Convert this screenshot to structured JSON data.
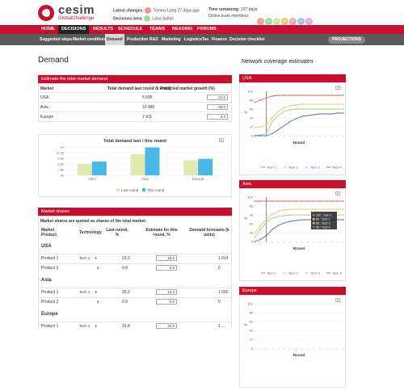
{
  "brand": {
    "name": "cesim",
    "sub": "GlobalChallenge"
  },
  "header": {
    "latest_label": "Latest changes:",
    "latest_value": "Tommy Long 27 days ago",
    "decision_label": "Decisions area:",
    "decision_value": "Lana Sultan",
    "time_label": "Time remaining:",
    "time_value": "107 days",
    "online_label": "Online team members:",
    "members": [
      {
        "i": "TL",
        "c": "#e8a08e"
      },
      {
        "i": "KG",
        "c": "#9fd8a0"
      },
      {
        "i": "AD",
        "c": "#c5e69a"
      },
      {
        "i": "MM",
        "c": "#f2c07c"
      },
      {
        "i": "SP",
        "c": "#f09fb0"
      },
      {
        "i": "JS",
        "c": "#9fc2ea"
      },
      {
        "i": "VN",
        "c": "#d8a8e8"
      }
    ]
  },
  "nav": {
    "items": [
      "HOME",
      "DECISIONS",
      "RESULTS",
      "SCHEDULE",
      "TEAMS",
      "READING",
      "FORUMS"
    ],
    "active": "DECISIONS"
  },
  "subnav": {
    "items": [
      "Suggested steps",
      "Market conditions",
      "Demand",
      "Production",
      "R&D",
      "Marketing",
      "Logistics",
      "Tax",
      "Finance",
      "Decision checklist"
    ],
    "active": "Demand",
    "projections": "PROJECTIONS"
  },
  "page": {
    "title": "Demand"
  },
  "estimate": {
    "title": "Estimate the total market demand",
    "headers": [
      "Market",
      "Total demand last round (k units)",
      "Predicted market growth (%)"
    ],
    "rows": [
      {
        "market": "USA",
        "demand": "5 595",
        "growth": "21.0"
      },
      {
        "market": "Asia",
        "demand": "10 480",
        "growth": "32.0"
      },
      {
        "market": "Europe",
        "demand": "7 411",
        "growth": "9.0"
      }
    ]
  },
  "demand_chart": {
    "title": "Total demand last / this round",
    "categories": [
      "USA",
      "Asia",
      "Europe"
    ],
    "last_round": [
      5.6,
      10.5,
      7.4
    ],
    "this_round": [
      6.8,
      13.8,
      8.1
    ],
    "ticks": [
      "14",
      "11.2k",
      "8.4k",
      "5.6k",
      "2.8k",
      "0k"
    ],
    "legend": [
      "Last round",
      "This round"
    ]
  },
  "market_shares": {
    "title": "Market shares",
    "desc": "Market shares are quoted as shares of the total market.",
    "headers": [
      "Market_ Product_",
      "Technology",
      "Last round, %",
      "Estimate for this round, %",
      "Demand forecasts (k units)"
    ],
    "groups": [
      {
        "name": "USA",
        "rows": [
          {
            "p": "Product 1",
            "t": "Tech 1",
            "l": "23.3",
            "e": "15.0",
            "f": "1 014"
          },
          {
            "p": "Product 2",
            "t": "",
            "l": "0.0",
            "e": "0.0",
            "f": "0"
          }
        ]
      },
      {
        "name": "Asia",
        "rows": [
          {
            "p": "Product 1",
            "t": "Tech 1",
            "l": "26.2",
            "e": "12.0",
            "f": "1 660"
          },
          {
            "p": "Product 2",
            "t": "",
            "l": "0.0",
            "e": "0.0",
            "f": "0"
          }
        ]
      },
      {
        "name": "Europe",
        "rows": [
          {
            "p": "Product 1",
            "t": "Tech 1",
            "l": "31.8",
            "e": "20.0",
            "f": "1 ..."
          }
        ]
      }
    ]
  },
  "network": {
    "title": "Network coverage estimates",
    "panels": [
      {
        "name": "USA"
      },
      {
        "name": "Asia"
      },
      {
        "name": "Europe"
      }
    ],
    "yticks": [
      "110",
      "88",
      "66",
      "44",
      "22",
      "0"
    ],
    "xlabel": "Round",
    "ylabel": "%",
    "legend": [
      "Tech 1",
      "Tech 2",
      "Tech 3",
      "Tech 4"
    ],
    "colors": [
      "#c96b6b",
      "#e8c872",
      "#a6d08a",
      "#5a6fa0"
    ],
    "tooltip": [
      "100 : Tech 1",
      "80 : Tech 2",
      "66 : Tech 3",
      "54 : Tech 4"
    ]
  },
  "chart_data": [
    {
      "type": "bar",
      "title": "Total demand last / this round",
      "categories": [
        "USA",
        "Asia",
        "Europe"
      ],
      "series": [
        {
          "name": "Last round",
          "values": [
            5.6,
            10.5,
            7.4
          ]
        },
        {
          "name": "This round",
          "values": [
            6.8,
            13.8,
            8.1
          ]
        }
      ],
      "ylim": [
        0,
        14
      ]
    },
    {
      "type": "line",
      "title": "USA",
      "xlabel": "Round",
      "ylabel": "%",
      "ylim": [
        0,
        110
      ],
      "x": [
        1,
        2,
        3,
        4,
        5,
        6,
        7,
        8,
        9,
        10,
        11,
        12,
        13,
        14,
        15,
        16
      ],
      "series": [
        {
          "name": "Tech 1",
          "values": [
            82,
            88,
            94,
            98,
            100,
            100,
            100,
            100,
            100,
            100,
            100,
            100,
            100,
            100,
            100,
            100
          ]
        },
        {
          "name": "Tech 2",
          "values": [
            20,
            22,
            26,
            45,
            60,
            70,
            74,
            76,
            78,
            78,
            78,
            78,
            78,
            78,
            78,
            78
          ]
        },
        {
          "name": "Tech 3",
          "values": [
            0,
            2,
            5,
            35,
            50,
            60,
            64,
            66,
            66,
            66,
            66,
            66,
            66,
            66,
            66,
            66
          ]
        },
        {
          "name": "Tech 4",
          "values": [
            0,
            0,
            0,
            5,
            15,
            25,
            35,
            42,
            48,
            50,
            52,
            54,
            54,
            54,
            56,
            56
          ]
        }
      ]
    },
    {
      "type": "line",
      "title": "Asia",
      "xlabel": "Round",
      "ylabel": "%",
      "ylim": [
        0,
        110
      ],
      "x": [
        1,
        2,
        3,
        4,
        5,
        6,
        7,
        8,
        9,
        10,
        11,
        12,
        13,
        14,
        15,
        16
      ],
      "series": [
        {
          "name": "Tech 1",
          "values": [
            100,
            100,
            100,
            100,
            100,
            100,
            100,
            100,
            100,
            100,
            100,
            100,
            100,
            100,
            100,
            100
          ]
        },
        {
          "name": "Tech 2",
          "values": [
            20,
            40,
            55,
            68,
            75,
            78,
            80,
            80,
            80,
            80,
            80,
            80,
            80,
            80,
            80,
            80
          ]
        },
        {
          "name": "Tech 3",
          "values": [
            10,
            30,
            48,
            58,
            62,
            64,
            66,
            66,
            66,
            66,
            66,
            66,
            66,
            66,
            66,
            66
          ]
        },
        {
          "name": "Tech 4",
          "values": [
            0,
            5,
            15,
            30,
            40,
            46,
            50,
            52,
            54,
            54,
            54,
            54,
            54,
            54,
            54,
            54
          ]
        }
      ]
    }
  ]
}
